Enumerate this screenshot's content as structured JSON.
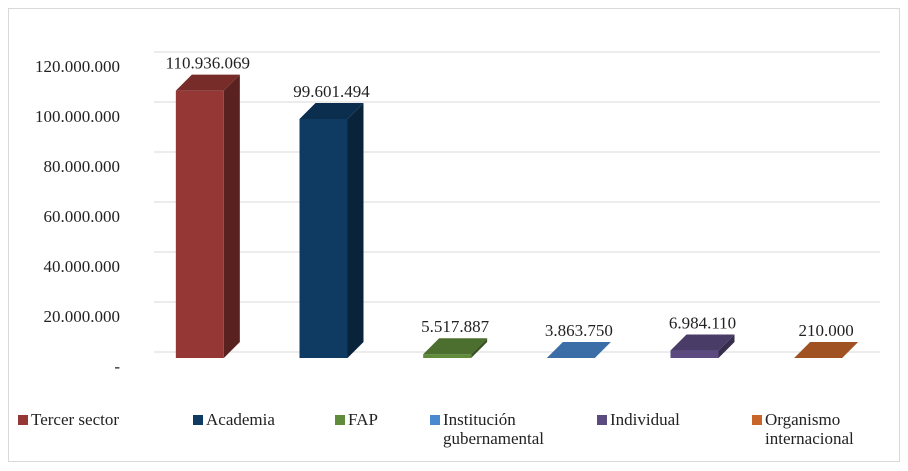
{
  "chart_data": {
    "type": "bar3d",
    "categories": [
      "Tercer sector",
      "Academia",
      "FAP",
      "Institución gubernamental",
      "Individual",
      "Organismo internacional"
    ],
    "series": [
      {
        "name": "Tercer sector",
        "color": "#953735"
      },
      {
        "name": "Academia",
        "color": "#0f3a62"
      },
      {
        "name": "FAP",
        "color": "#5f8b3b"
      },
      {
        "name": "Institución gubernamental",
        "color": "#4a89cf"
      },
      {
        "name": "Individual",
        "color": "#5b4b80"
      },
      {
        "name": "Organismo internacional",
        "color": "#c8662a"
      }
    ],
    "values": [
      110936069,
      99601494,
      5517887,
      3863750,
      6984110,
      210000
    ],
    "value_labels": [
      "110.936.069",
      "99.601.494",
      "5.517.887",
      "3.863.750",
      "6.984.110",
      "210.000"
    ],
    "ylim": [
      0,
      120000000
    ],
    "yticks": [
      {
        "value": 0,
        "label": "-"
      },
      {
        "value": 20000000,
        "label": "20.000.000"
      },
      {
        "value": 40000000,
        "label": "40.000.000"
      },
      {
        "value": 60000000,
        "label": "60.000.000"
      },
      {
        "value": 80000000,
        "label": "80.000.000"
      },
      {
        "value": 100000000,
        "label": "100.000.000"
      },
      {
        "value": 120000000,
        "label": "120.000.000"
      }
    ],
    "grid": true
  }
}
